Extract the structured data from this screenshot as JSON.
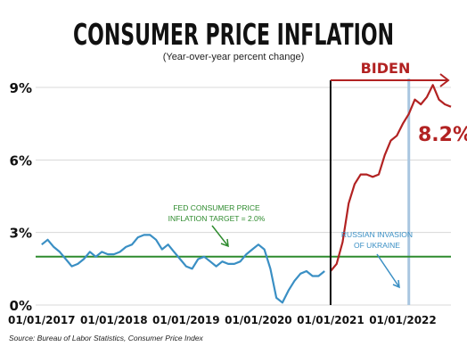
{
  "chart_data": {
    "type": "line",
    "title": "CONSUMER PRICE INFLATION",
    "subtitle": "(Year-over-year percent change)",
    "source": "Source: Bureau of Labor Statistics, Consumer Price Index",
    "xlim": [
      "2016-12",
      "2022-09"
    ],
    "ylim": [
      0,
      9
    ],
    "y_ticks": [
      0,
      3,
      6,
      9
    ],
    "y_tick_labels": [
      "0%",
      "3%",
      "6%",
      "9%"
    ],
    "x_ticks": [
      "2017-01",
      "2018-01",
      "2019-01",
      "2020-01",
      "2021-01",
      "2022-01"
    ],
    "x_tick_labels": [
      "01/01/2017",
      "01/01/2018",
      "01/01/2019",
      "01/01/2020",
      "01/01/2021",
      "01/01/2022"
    ],
    "fed_target": {
      "value": 2.0,
      "label_line1": "FED CONSUMER PRICE",
      "label_line2": "INFLATION TARGET = 2.0%",
      "color": "#2e8b2e"
    },
    "biden_start": {
      "date": "2021-01",
      "label": "BIDEN",
      "color": "#b22222"
    },
    "invasion": {
      "date": "2022-02",
      "label_line1": "RUSSIAN INVASION",
      "label_line2": "OF UKRAINE",
      "color": "#a9c6e0"
    },
    "callout": {
      "label": "8.2%",
      "value": 8.2
    },
    "series": [
      {
        "color": "#3a8fc4",
        "x": [
          "2017-01",
          "2017-02",
          "2017-03",
          "2017-04",
          "2017-05",
          "2017-06",
          "2017-07",
          "2017-08",
          "2017-09",
          "2017-10",
          "2017-11",
          "2017-12",
          "2018-01",
          "2018-02",
          "2018-03",
          "2018-04",
          "2018-05",
          "2018-06",
          "2018-07",
          "2018-08",
          "2018-09",
          "2018-10",
          "2018-11",
          "2018-12",
          "2019-01",
          "2019-02",
          "2019-03",
          "2019-04",
          "2019-05",
          "2019-06",
          "2019-07",
          "2019-08",
          "2019-09",
          "2019-10",
          "2019-11",
          "2019-12",
          "2020-01",
          "2020-02",
          "2020-03",
          "2020-04",
          "2020-05",
          "2020-06",
          "2020-07",
          "2020-08",
          "2020-09",
          "2020-10",
          "2020-11",
          "2020-12"
        ],
        "values": [
          2.5,
          2.7,
          2.4,
          2.2,
          1.9,
          1.6,
          1.7,
          1.9,
          2.2,
          2.0,
          2.2,
          2.1,
          2.1,
          2.2,
          2.4,
          2.5,
          2.8,
          2.9,
          2.9,
          2.7,
          2.3,
          2.5,
          2.2,
          1.9,
          1.6,
          1.5,
          1.9,
          2.0,
          1.8,
          1.6,
          1.8,
          1.7,
          1.7,
          1.8,
          2.1,
          2.3,
          2.5,
          2.3,
          1.5,
          0.3,
          0.1,
          0.6,
          1.0,
          1.3,
          1.4,
          1.2,
          1.2,
          1.4
        ]
      },
      {
        "color": "#b22222",
        "x": [
          "2021-01",
          "2021-02",
          "2021-03",
          "2021-04",
          "2021-05",
          "2021-06",
          "2021-07",
          "2021-08",
          "2021-09",
          "2021-10",
          "2021-11",
          "2021-12",
          "2022-01",
          "2022-02",
          "2022-03",
          "2022-04",
          "2022-05",
          "2022-06",
          "2022-07",
          "2022-08",
          "2022-09"
        ],
        "values": [
          1.4,
          1.7,
          2.6,
          4.2,
          5.0,
          5.4,
          5.4,
          5.3,
          5.4,
          6.2,
          6.8,
          7.0,
          7.5,
          7.9,
          8.5,
          8.3,
          8.6,
          9.1,
          8.5,
          8.3,
          8.2
        ]
      }
    ]
  }
}
